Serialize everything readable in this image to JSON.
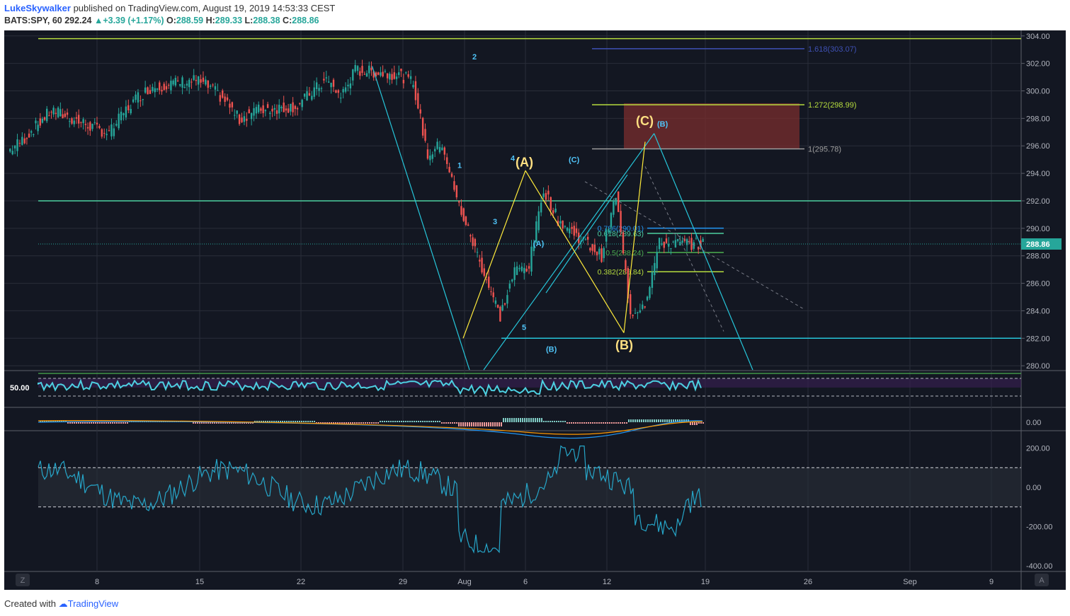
{
  "header": {
    "author": "LukeSkywalker",
    "published_text": "published on TradingView.com, August 19, 2019 14:53:33 CEST",
    "symbol": "BATS:SPY, 60",
    "last": "292.24",
    "change": "+3.39 (+1.17%)",
    "open_label": "O:",
    "open": "288.59",
    "high_label": "H:",
    "high": "289.33",
    "low_label": "L:",
    "low": "288.38",
    "close_label": "C:",
    "close": "288.86"
  },
  "footer": {
    "created_with": "Created with",
    "brand": "TradingView"
  },
  "colors": {
    "background": "#131722",
    "up": "#26a69a",
    "down": "#ef5350",
    "cyan_line": "#26c6da",
    "yellow_line": "#ffeb3b",
    "lime": "#b6dc3e",
    "teal_level": "#4dd0a0",
    "zone": "#7a2e2e"
  },
  "chart_data": [
    {
      "type": "line",
      "title": "",
      "x_tick_labels": [
        "8",
        "15",
        "22",
        "29",
        "Aug",
        "6",
        "12",
        "19",
        "26",
        "Sep",
        "9"
      ],
      "y_tick_labels": [
        "304.00",
        "302.00",
        "300.00",
        "298.00",
        "296.00",
        "294.00",
        "292.00",
        "290.00",
        "288.00",
        "286.00",
        "284.00",
        "282.00",
        "280.00"
      ],
      "ylim": [
        279.7,
        304.4
      ],
      "last_price_label": "288.86",
      "price_path": [
        [
          "Jul 2",
          295.6
        ],
        [
          "Jul 3",
          296.4
        ],
        [
          "Jul 5",
          298.6
        ],
        [
          "Jul 8",
          297.3
        ],
        [
          "Jul 9",
          296.9
        ],
        [
          "Jul 10",
          298.4
        ],
        [
          "Jul 11",
          299.6
        ],
        [
          "Jul 12",
          300.3
        ],
        [
          "Jul 15",
          300.8
        ],
        [
          "Jul 16",
          300.2
        ],
        [
          "Jul 17",
          299.3
        ],
        [
          "Jul 18",
          297.9
        ],
        [
          "Jul 19",
          298.6
        ],
        [
          "Jul 22",
          298.9
        ],
        [
          "Jul 23",
          299.9
        ],
        [
          "Jul 24",
          300.8
        ],
        [
          "Jul 25",
          299.6
        ],
        [
          "Jul 26",
          301.5
        ],
        [
          "Jul 29",
          301.2
        ],
        [
          "Jul 30",
          300.6
        ],
        [
          "Jul 31",
          295.3
        ],
        [
          "Aug 1",
          296.2
        ],
        [
          "Aug 2",
          292.1
        ],
        [
          "Aug 5",
          283.6
        ],
        [
          "Aug 6",
          286.9
        ],
        [
          "Aug 7",
          287.3
        ],
        [
          "Aug 8",
          292.9
        ],
        [
          "Aug 9",
          290.6
        ],
        [
          "Aug 12",
          288.0
        ],
        [
          "Aug 13",
          292.4
        ],
        [
          "Aug 14",
          283.8
        ],
        [
          "Aug 15",
          284.6
        ],
        [
          "Aug 16",
          288.9
        ],
        [
          "Aug 19",
          288.86
        ]
      ],
      "horizontal_levels": [
        {
          "value": 303.8,
          "color": "#b6dc3e"
        },
        {
          "value": 292.0,
          "color": "#4dd0a0"
        },
        {
          "value": 282.0,
          "color": "#26c6da"
        }
      ],
      "fib_extension": [
        {
          "label": "1.618(303.07)",
          "value": 303.07,
          "color": "#3f51b5"
        },
        {
          "label": "1.272(298.99)",
          "value": 298.99,
          "color": "#b6dc3e"
        },
        {
          "label": "1(295.78)",
          "value": 295.78,
          "color": "#9e9e9e"
        }
      ],
      "fib_retracement": [
        {
          "label": "0.786(290.01)",
          "value": 290.01,
          "color": "#2196f3"
        },
        {
          "label": "0.618(289.63)",
          "value": 289.63,
          "color": "#4dd0a0"
        },
        {
          "label": "0.5(288.24)",
          "value": 288.24,
          "color": "#4caf50"
        },
        {
          "label": "0.382(286.84)",
          "value": 286.84,
          "color": "#b6dc3e"
        }
      ],
      "wave_labels_cyan": [
        "1",
        "2",
        "3",
        "4",
        "5",
        "(A)",
        "(B)",
        "(C)",
        "(B)"
      ],
      "wave_labels_yellow": [
        "(A)",
        "(B)",
        "(C)"
      ]
    },
    {
      "type": "line",
      "title": "",
      "y_tick_labels": [
        "50.00"
      ],
      "note_levels": [
        70,
        30
      ]
    },
    {
      "type": "bar",
      "title": "",
      "y_tick_labels": [
        "0.00"
      ]
    },
    {
      "type": "line",
      "title": "",
      "y_tick_labels": [
        "200.00",
        "0.00",
        "-200.00",
        "-400.00"
      ],
      "ylim": [
        -400,
        250
      ],
      "bands": [
        100,
        -100
      ]
    }
  ],
  "corner_buttons": {
    "left": "Z",
    "right": "A"
  }
}
